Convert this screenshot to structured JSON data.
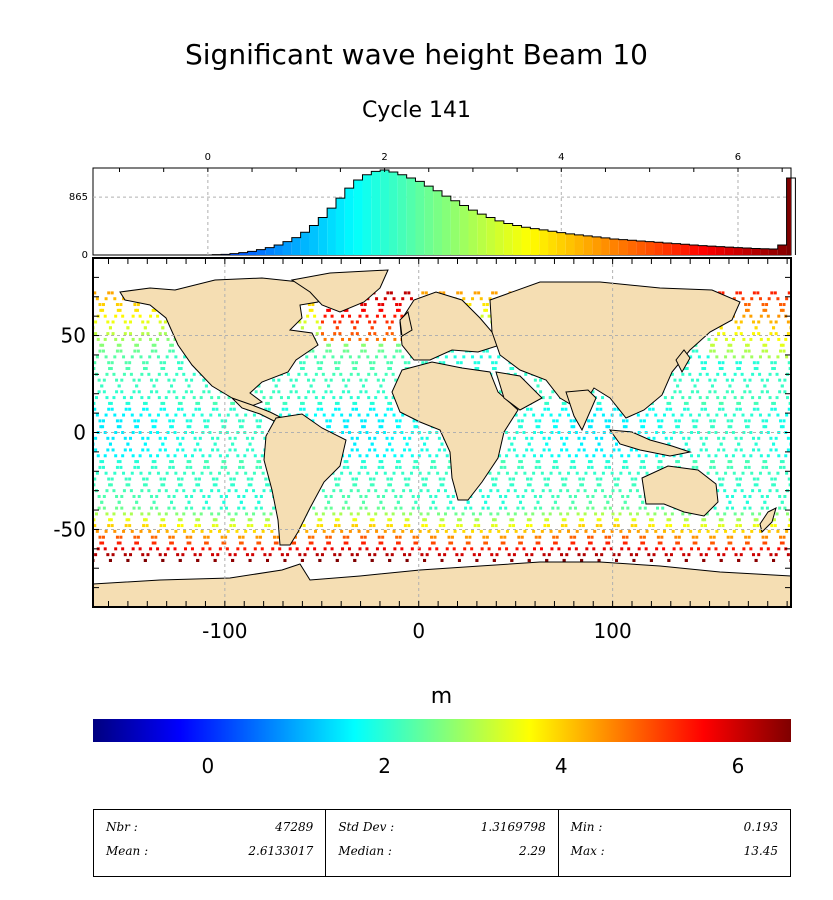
{
  "title": "Significant wave height Beam 10",
  "subtitle": "Cycle 141",
  "colorbar": {
    "unit": "m",
    "ticks": [
      "0",
      "2",
      "4",
      "6"
    ],
    "range": [
      -1.3,
      6.6
    ],
    "colors": [
      "#00007f",
      "#0000ff",
      "#007fff",
      "#00ffff",
      "#7fff7f",
      "#ffff00",
      "#ff7f00",
      "#ff0000",
      "#7f0000"
    ]
  },
  "histogram": {
    "top_ticks": [
      "0",
      "2",
      "4",
      "6"
    ],
    "y_ticks": [
      "0",
      "865"
    ],
    "y_max": 1300,
    "bins": [
      {
        "x": 0.1,
        "count": 5
      },
      {
        "x": 0.2,
        "count": 10
      },
      {
        "x": 0.3,
        "count": 20
      },
      {
        "x": 0.4,
        "count": 35
      },
      {
        "x": 0.5,
        "count": 55
      },
      {
        "x": 0.6,
        "count": 80
      },
      {
        "x": 0.7,
        "count": 110
      },
      {
        "x": 0.8,
        "count": 150
      },
      {
        "x": 0.9,
        "count": 200
      },
      {
        "x": 1.0,
        "count": 260
      },
      {
        "x": 1.1,
        "count": 340
      },
      {
        "x": 1.2,
        "count": 440
      },
      {
        "x": 1.3,
        "count": 560
      },
      {
        "x": 1.4,
        "count": 700
      },
      {
        "x": 1.5,
        "count": 850
      },
      {
        "x": 1.6,
        "count": 1000
      },
      {
        "x": 1.7,
        "count": 1120
      },
      {
        "x": 1.8,
        "count": 1200
      },
      {
        "x": 1.9,
        "count": 1250
      },
      {
        "x": 2.0,
        "count": 1270
      },
      {
        "x": 2.1,
        "count": 1240
      },
      {
        "x": 2.2,
        "count": 1200
      },
      {
        "x": 2.3,
        "count": 1150
      },
      {
        "x": 2.4,
        "count": 1100
      },
      {
        "x": 2.5,
        "count": 1030
      },
      {
        "x": 2.6,
        "count": 960
      },
      {
        "x": 2.7,
        "count": 880
      },
      {
        "x": 2.8,
        "count": 810
      },
      {
        "x": 2.9,
        "count": 740
      },
      {
        "x": 3.0,
        "count": 670
      },
      {
        "x": 3.1,
        "count": 610
      },
      {
        "x": 3.2,
        "count": 560
      },
      {
        "x": 3.3,
        "count": 510
      },
      {
        "x": 3.4,
        "count": 470
      },
      {
        "x": 3.5,
        "count": 440
      },
      {
        "x": 3.6,
        "count": 415
      },
      {
        "x": 3.7,
        "count": 395
      },
      {
        "x": 3.8,
        "count": 375
      },
      {
        "x": 3.9,
        "count": 355
      },
      {
        "x": 4.0,
        "count": 335
      },
      {
        "x": 4.1,
        "count": 315
      },
      {
        "x": 4.2,
        "count": 300
      },
      {
        "x": 4.3,
        "count": 285
      },
      {
        "x": 4.4,
        "count": 270
      },
      {
        "x": 4.5,
        "count": 255
      },
      {
        "x": 4.6,
        "count": 240
      },
      {
        "x": 4.7,
        "count": 230
      },
      {
        "x": 4.8,
        "count": 220
      },
      {
        "x": 4.9,
        "count": 210
      },
      {
        "x": 5.0,
        "count": 200
      },
      {
        "x": 5.1,
        "count": 190
      },
      {
        "x": 5.2,
        "count": 180
      },
      {
        "x": 5.3,
        "count": 170
      },
      {
        "x": 5.4,
        "count": 160
      },
      {
        "x": 5.5,
        "count": 150
      },
      {
        "x": 5.6,
        "count": 140
      },
      {
        "x": 5.7,
        "count": 132
      },
      {
        "x": 5.8,
        "count": 125
      },
      {
        "x": 5.9,
        "count": 118
      },
      {
        "x": 6.0,
        "count": 110
      },
      {
        "x": 6.1,
        "count": 104
      },
      {
        "x": 6.2,
        "count": 98
      },
      {
        "x": 6.3,
        "count": 94
      },
      {
        "x": 6.4,
        "count": 90
      },
      {
        "x": 6.5,
        "count": 150
      },
      {
        "x": 6.6,
        "count": 1150
      }
    ]
  },
  "map": {
    "x_ticks": [
      "-100",
      "0",
      "100"
    ],
    "y_ticks": [
      "50",
      "0",
      "-50"
    ],
    "lon_range": [
      -168,
      192
    ],
    "lat_range": [
      -90,
      90
    ],
    "land_color": "#f5deb3",
    "ocean_color": "#ffffff"
  },
  "stats": {
    "nbr_label": "Nbr :",
    "nbr": "47289",
    "mean_label": "Mean :",
    "mean": "2.6133017",
    "std_label": "Std Dev :",
    "std": "1.3169798",
    "median_label": "Median :",
    "median": "2.29",
    "min_label": "Min :",
    "min": "0.193",
    "max_label": "Max :",
    "max": "13.45"
  }
}
